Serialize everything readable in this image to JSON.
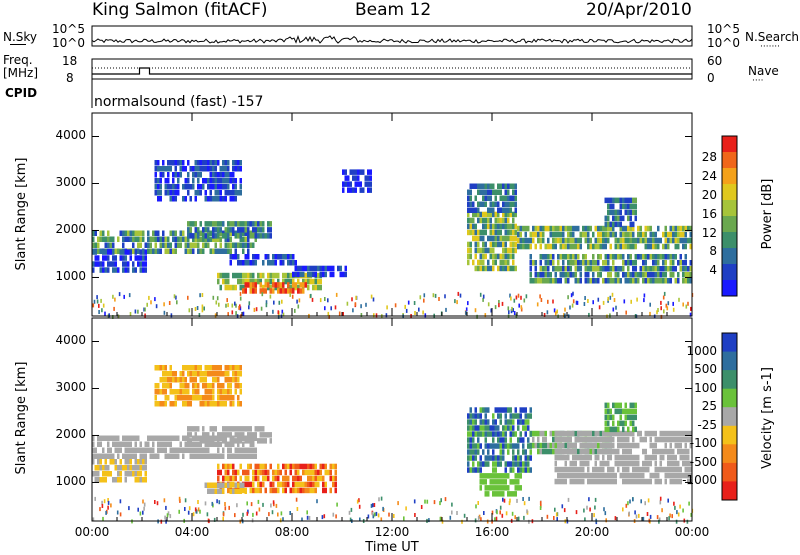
{
  "header": {
    "station": "King Salmon (fitACF)",
    "beam": "Beam 12",
    "date": "20/Apr/2010"
  },
  "side_labels": {
    "nsky": "N.Sky",
    "nsearch": "N.Search",
    "nsearch_dots": "·······",
    "freq": "Freq.",
    "freq_unit": "[MHz]",
    "nave": "Nave",
    "nave_dots": "····",
    "cpid": "CPID"
  },
  "noise_axis": {
    "top": "10^5",
    "bottom": "10^0"
  },
  "freq_axis": {
    "left_top": "18",
    "left_bottom": "8",
    "right_top": "60",
    "right_bottom": "0"
  },
  "cpid_text": "normalsound (fast) -157",
  "chart_data": [
    {
      "type": "heatmap",
      "name": "power",
      "ylabel": "Slant Range [km]",
      "xlabel": "Time UT",
      "ylim": [
        180,
        4500
      ],
      "yticks": [
        "1000",
        "2000",
        "3000",
        "4000"
      ],
      "xticks": [
        "00:00",
        "04:00",
        "08:00",
        "12:00",
        "16:00",
        "20:00",
        "00:00"
      ],
      "colorbar": {
        "label": "Power [dB]",
        "tick_labels": [
          "4",
          "8",
          "12",
          "16",
          "20",
          "24",
          "28"
        ],
        "colors": [
          "#1a1aff",
          "#1f3fc4",
          "#2e6e9e",
          "#3c8f6a",
          "#6aa84f",
          "#a6c43a",
          "#e0c81e",
          "#f4a11a",
          "#f0661a",
          "#e8201a"
        ]
      },
      "regions": [
        {
          "t0": 0.0,
          "t1": 6.6,
          "r0": 1600,
          "r1": 2000,
          "level": [
            1,
            5
          ]
        },
        {
          "t0": 0.0,
          "t1": 2.2,
          "r0": 1100,
          "r1": 1600,
          "level": [
            0,
            2
          ]
        },
        {
          "t0": 3.8,
          "t1": 7.2,
          "r0": 1900,
          "r1": 2200,
          "level": [
            1,
            4
          ]
        },
        {
          "t0": 2.5,
          "t1": 6.0,
          "r0": 2700,
          "r1": 3500,
          "level": [
            0,
            2
          ]
        },
        {
          "t0": 5.5,
          "t1": 8.2,
          "r0": 1300,
          "r1": 1500,
          "level": [
            0,
            2
          ]
        },
        {
          "t0": 5.0,
          "t1": 9.2,
          "r0": 800,
          "r1": 1100,
          "level": [
            3,
            6
          ]
        },
        {
          "t0": 6.0,
          "t1": 8.6,
          "r0": 650,
          "r1": 900,
          "level": [
            7,
            9
          ]
        },
        {
          "t0": 8.0,
          "t1": 10.2,
          "r0": 1000,
          "r1": 1250,
          "level": [
            0,
            2
          ]
        },
        {
          "t0": 10.0,
          "t1": 11.2,
          "r0": 2900,
          "r1": 3300,
          "level": [
            0,
            1
          ]
        },
        {
          "t0": 15.0,
          "t1": 17.0,
          "r0": 1200,
          "r1": 2400,
          "level": [
            2,
            6
          ]
        },
        {
          "t0": 15.0,
          "t1": 17.0,
          "r0": 2400,
          "r1": 3000,
          "level": [
            1,
            3
          ]
        },
        {
          "t0": 17.0,
          "t1": 24.0,
          "r0": 1600,
          "r1": 2100,
          "level": [
            2,
            6
          ]
        },
        {
          "t0": 17.5,
          "t1": 24.0,
          "r0": 950,
          "r1": 1500,
          "level": [
            1,
            5
          ]
        },
        {
          "t0": 20.5,
          "t1": 21.8,
          "r0": 2100,
          "r1": 2700,
          "level": [
            1,
            4
          ]
        }
      ]
    },
    {
      "type": "heatmap",
      "name": "velocity",
      "ylabel": "Slant Range [km]",
      "xlabel": "Time UT",
      "ylim": [
        180,
        4500
      ],
      "yticks": [
        "1000",
        "2000",
        "3000",
        "4000"
      ],
      "xticks": [
        "00:00",
        "04:00",
        "08:00",
        "12:00",
        "16:00",
        "20:00",
        "00:00"
      ],
      "colorbar": {
        "label": "Velocity [m s-1]",
        "tick_labels": [
          "1000",
          "500",
          "100",
          "25",
          "-25",
          "-100",
          "-500",
          "-1000"
        ],
        "colors": [
          "#1f3fc4",
          "#2e6e9e",
          "#3c8f6a",
          "#6ac23a",
          "#a8a8a8",
          "#f4c11a",
          "#f48a1a",
          "#f05a1a",
          "#e8201a"
        ]
      },
      "regions": [
        {
          "t0": 0.0,
          "t1": 6.6,
          "r0": 1500,
          "r1": 2000,
          "level": [
            4,
            4
          ]
        },
        {
          "t0": 0.0,
          "t1": 2.2,
          "r0": 1100,
          "r1": 1500,
          "level": [
            4,
            5
          ]
        },
        {
          "t0": 3.8,
          "t1": 7.2,
          "r0": 1900,
          "r1": 2200,
          "level": [
            4,
            4
          ]
        },
        {
          "t0": 2.5,
          "t1": 6.0,
          "r0": 2700,
          "r1": 3500,
          "level": [
            5,
            6
          ]
        },
        {
          "t0": 5.0,
          "t1": 9.8,
          "r0": 850,
          "r1": 1400,
          "level": [
            5,
            8
          ]
        },
        {
          "t0": 4.5,
          "t1": 6.2,
          "r0": 750,
          "r1": 1000,
          "level": [
            4,
            5
          ]
        },
        {
          "t0": 15.0,
          "t1": 17.6,
          "r0": 1200,
          "r1": 2600,
          "level": [
            0,
            3
          ]
        },
        {
          "t0": 15.5,
          "t1": 17.2,
          "r0": 800,
          "r1": 1200,
          "level": [
            3,
            3
          ]
        },
        {
          "t0": 17.5,
          "t1": 20.8,
          "r0": 1700,
          "r1": 2100,
          "level": [
            2,
            4
          ]
        },
        {
          "t0": 18.5,
          "t1": 24.0,
          "r0": 1000,
          "r1": 2100,
          "level": [
            4,
            4
          ]
        },
        {
          "t0": 20.5,
          "t1": 21.8,
          "r0": 2100,
          "r1": 2700,
          "level": [
            2,
            3
          ]
        }
      ]
    }
  ]
}
